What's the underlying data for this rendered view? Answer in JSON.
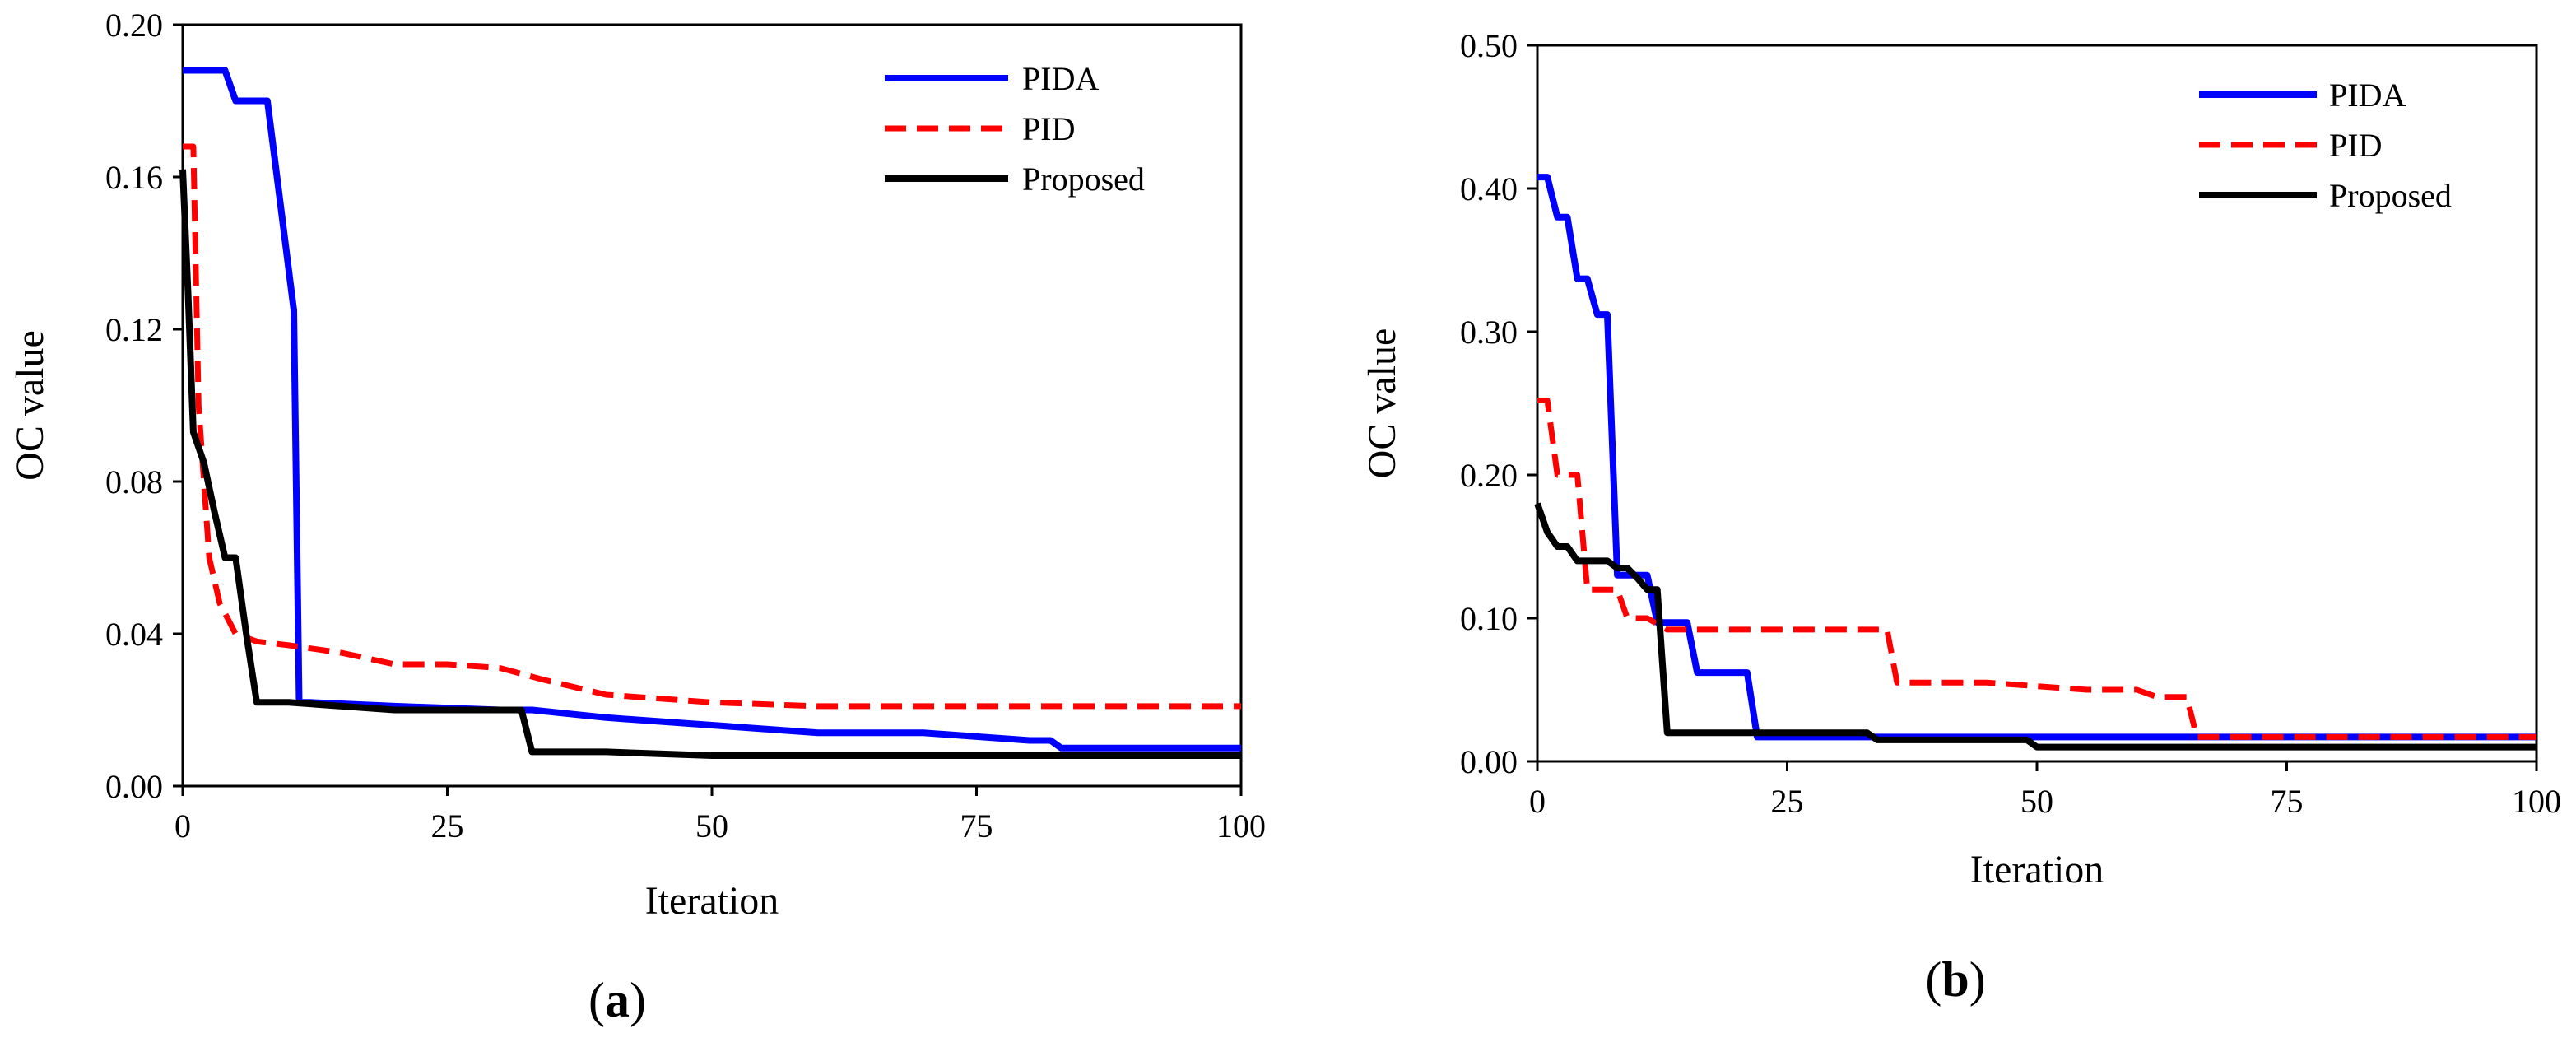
{
  "chart_data": [
    {
      "type": "line",
      "panel_label": "a",
      "xlabel": "Iteration",
      "ylabel": "OC value",
      "xlim": [
        0,
        100
      ],
      "ylim": [
        0,
        0.2
      ],
      "xticks": [
        0,
        25,
        50,
        75,
        100
      ],
      "yticks": [
        0,
        0.04,
        0.08,
        0.12,
        0.16,
        0.2
      ],
      "xtick_labels": [
        "0",
        "25",
        "50",
        "75",
        "100"
      ],
      "ytick_labels": [
        "0.00",
        "0.04",
        "0.08",
        "0.12",
        "0.16",
        "0.20"
      ],
      "legend_position": "top-right",
      "series": [
        {
          "name": "PIDA",
          "color": "#0000ff",
          "style": "solid",
          "x": [
            0,
            4,
            5,
            8,
            10.5,
            11,
            11.5,
            12,
            20,
            30,
            33,
            40,
            50,
            60,
            70,
            75,
            80,
            82,
            83,
            90,
            100
          ],
          "y": [
            0.188,
            0.188,
            0.18,
            0.18,
            0.125,
            0.022,
            0.022,
            0.022,
            0.021,
            0.02,
            0.02,
            0.018,
            0.016,
            0.014,
            0.014,
            0.013,
            0.012,
            0.012,
            0.01,
            0.01,
            0.01
          ]
        },
        {
          "name": "PID",
          "color": "#ff0000",
          "style": "dashed",
          "x": [
            0,
            1,
            1.5,
            2.5,
            3.5,
            5,
            7,
            10,
            15,
            20,
            25,
            30,
            34,
            40,
            50,
            60,
            70,
            80,
            90,
            100
          ],
          "y": [
            0.168,
            0.168,
            0.1,
            0.06,
            0.048,
            0.04,
            0.038,
            0.037,
            0.035,
            0.032,
            0.032,
            0.031,
            0.028,
            0.024,
            0.022,
            0.021,
            0.021,
            0.021,
            0.021,
            0.021
          ]
        },
        {
          "name": "Proposed",
          "color": "#000000",
          "style": "solid",
          "x": [
            0,
            0.5,
            1,
            2,
            3,
            4,
            5,
            6,
            7,
            10,
            15,
            20,
            25,
            30,
            32,
            33,
            35,
            40,
            50,
            60,
            70,
            80,
            90,
            100
          ],
          "y": [
            0.162,
            0.13,
            0.093,
            0.085,
            0.072,
            0.06,
            0.06,
            0.04,
            0.022,
            0.022,
            0.021,
            0.02,
            0.02,
            0.02,
            0.02,
            0.009,
            0.009,
            0.009,
            0.008,
            0.008,
            0.008,
            0.008,
            0.008,
            0.008
          ]
        }
      ]
    },
    {
      "type": "line",
      "panel_label": "b",
      "xlabel": "Iteration",
      "ylabel": "OC value",
      "xlim": [
        0,
        100
      ],
      "ylim": [
        0,
        0.5
      ],
      "xticks": [
        0,
        25,
        50,
        75,
        100
      ],
      "yticks": [
        0,
        0.1,
        0.2,
        0.3,
        0.4,
        0.5
      ],
      "xtick_labels": [
        "0",
        "25",
        "50",
        "75",
        "100"
      ],
      "ytick_labels": [
        "0.00",
        "0.10",
        "0.20",
        "0.30",
        "0.40",
        "0.50"
      ],
      "legend_position": "top-right",
      "series": [
        {
          "name": "PIDA",
          "color": "#0000ff",
          "style": "solid",
          "x": [
            0,
            1,
            2,
            3,
            4,
            5,
            6,
            7,
            8,
            9,
            10,
            11,
            12,
            13,
            14,
            15,
            16,
            17,
            18,
            19,
            20,
            21,
            22,
            25,
            35,
            50,
            65,
            80,
            100
          ],
          "y": [
            0.408,
            0.408,
            0.38,
            0.38,
            0.337,
            0.337,
            0.312,
            0.312,
            0.13,
            0.13,
            0.13,
            0.13,
            0.097,
            0.097,
            0.097,
            0.097,
            0.062,
            0.062,
            0.062,
            0.062,
            0.062,
            0.062,
            0.017,
            0.017,
            0.017,
            0.017,
            0.017,
            0.017,
            0.017
          ]
        },
        {
          "name": "PID",
          "color": "#ff0000",
          "style": "dashed",
          "x": [
            0,
            1,
            2,
            3,
            4,
            5,
            6,
            7,
            8,
            9,
            10,
            11,
            13,
            15,
            20,
            30,
            35,
            36,
            45,
            55,
            60,
            62,
            65,
            66,
            70,
            80,
            100
          ],
          "y": [
            0.252,
            0.252,
            0.2,
            0.2,
            0.2,
            0.12,
            0.12,
            0.12,
            0.12,
            0.1,
            0.1,
            0.1,
            0.092,
            0.092,
            0.092,
            0.092,
            0.092,
            0.055,
            0.055,
            0.05,
            0.05,
            0.045,
            0.045,
            0.017,
            0.017,
            0.017,
            0.017
          ]
        },
        {
          "name": "Proposed",
          "color": "#000000",
          "style": "solid",
          "x": [
            0,
            1,
            2,
            3,
            4,
            5,
            6,
            7,
            8,
            9,
            10,
            11,
            12,
            13,
            15,
            20,
            25,
            30,
            33,
            34,
            40,
            45,
            49,
            50,
            60,
            80,
            100
          ],
          "y": [
            0.18,
            0.16,
            0.15,
            0.15,
            0.14,
            0.14,
            0.14,
            0.14,
            0.135,
            0.135,
            0.128,
            0.12,
            0.12,
            0.02,
            0.02,
            0.02,
            0.02,
            0.02,
            0.02,
            0.015,
            0.015,
            0.015,
            0.015,
            0.01,
            0.01,
            0.01,
            0.01
          ]
        }
      ]
    }
  ]
}
